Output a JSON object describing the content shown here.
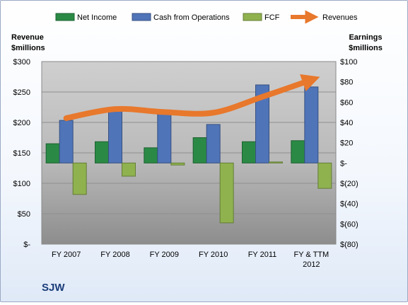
{
  "chart_data": {
    "type": "bar",
    "title": "SJW",
    "left_axis_label": [
      "Revenue",
      "$millions"
    ],
    "right_axis_label": [
      "Earnings",
      "$millions"
    ],
    "categories": [
      "FY 2007",
      "FY 2008",
      "FY 2009",
      "FY 2010",
      "FY 2011",
      "FY & TTM 2012"
    ],
    "left_axis": {
      "min": 0,
      "max": 300,
      "step": 50,
      "tick_labels": [
        "$-",
        "$50",
        "$100",
        "$150",
        "$200",
        "$250",
        "$300"
      ]
    },
    "right_axis": {
      "min": -80,
      "max": 100,
      "step": 20,
      "tick_labels": [
        "$(80)",
        "$(60)",
        "$(40)",
        "$(20)",
        "$-",
        "$20",
        "$40",
        "$60",
        "$80",
        "$100"
      ]
    },
    "grid": true,
    "legend_position": "top",
    "series": [
      {
        "name": "Net Income",
        "axis": "right",
        "kind": "bar",
        "color": "#2a8a45",
        "values": [
          19,
          21,
          15,
          25,
          21,
          22
        ]
      },
      {
        "name": "Cash from Operations",
        "axis": "right",
        "kind": "bar",
        "color": "#4f74b8",
        "values": [
          42,
          55,
          52,
          38,
          77,
          75
        ]
      },
      {
        "name": "FCF",
        "axis": "right",
        "kind": "bar",
        "color": "#8fb24f",
        "values": [
          -31,
          -13,
          -2,
          -59,
          1,
          -25
        ]
      },
      {
        "name": "Revenues",
        "axis": "left",
        "kind": "line",
        "color": "#e8782c",
        "values": [
          207,
          222,
          217,
          216,
          242,
          270
        ]
      }
    ]
  }
}
